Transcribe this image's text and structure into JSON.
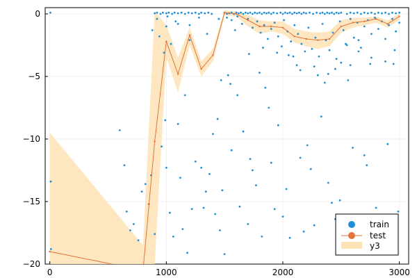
{
  "chart_data": {
    "type": "scatter",
    "xlim": [
      -40,
      3080
    ],
    "ylim": [
      -20,
      0.5
    ],
    "x_ticks": [
      0,
      1000,
      2000,
      3000
    ],
    "y_ticks": [
      0,
      -5,
      -10,
      -15,
      -20
    ],
    "x_tick_labels": [
      "0",
      "1000",
      "2000",
      "3000"
    ],
    "y_tick_labels": [
      "0",
      "−5",
      "−10",
      "−15",
      "−20"
    ],
    "grid": true,
    "legend_position": "bottom-right",
    "colors": {
      "train": "#1f8fd6",
      "test": "#e3733a",
      "band": "#fde2b5"
    },
    "series": [
      {
        "name": "train",
        "kind": "scatter",
        "points": [
          [
            5,
            0.1
          ],
          [
            8,
            -13.4
          ],
          [
            10,
            -18.8
          ],
          [
            600,
            -9.3
          ],
          [
            640,
            -12.1
          ],
          [
            660,
            -15.8
          ],
          [
            690,
            -17.3
          ],
          [
            720,
            -16.8
          ],
          [
            760,
            -18.1
          ],
          [
            790,
            -14.2
          ],
          [
            820,
            -13.6
          ],
          [
            850,
            -15.2
          ],
          [
            870,
            -12.9
          ],
          [
            880,
            -1.3
          ],
          [
            900,
            -17.6
          ],
          [
            920,
            -0.4
          ],
          [
            940,
            -1.8
          ],
          [
            960,
            -10.6
          ],
          [
            980,
            -3.1
          ],
          [
            990,
            -8.5
          ],
          [
            1000,
            -12.3
          ],
          [
            1010,
            -0.2
          ],
          [
            1030,
            -15.9
          ],
          [
            1040,
            -2.4
          ],
          [
            1060,
            -17.8
          ],
          [
            1080,
            -0.6
          ],
          [
            1100,
            -8.8
          ],
          [
            1120,
            -13.1
          ],
          [
            1140,
            -17.2
          ],
          [
            1160,
            -6.5
          ],
          [
            1180,
            -19.1
          ],
          [
            1200,
            -2.1
          ],
          [
            1220,
            -15.6
          ],
          [
            1250,
            -11.8
          ],
          [
            1280,
            -0.3
          ],
          [
            1300,
            -12.3
          ],
          [
            1320,
            -15.5
          ],
          [
            1340,
            -14.2
          ],
          [
            1370,
            -12.8
          ],
          [
            1400,
            -9.6
          ],
          [
            1420,
            -16.0
          ],
          [
            1440,
            -8.4
          ],
          [
            1460,
            -17.3
          ],
          [
            1480,
            -14.1
          ],
          [
            1500,
            -19.2
          ],
          [
            1530,
            -4.9
          ],
          [
            1560,
            -10.9
          ],
          [
            1590,
            -1.3
          ],
          [
            1610,
            -6.5
          ],
          [
            1630,
            -15.4
          ],
          [
            1660,
            -9.4
          ],
          [
            1700,
            -16.8
          ],
          [
            1720,
            -11.6
          ],
          [
            1740,
            -12.5
          ],
          [
            1770,
            -13.7
          ],
          [
            1800,
            -4.7
          ],
          [
            1820,
            -17.8
          ],
          [
            1850,
            -5.9
          ],
          [
            1880,
            -7.5
          ],
          [
            1900,
            -11.9
          ],
          [
            1930,
            -15.6
          ],
          [
            1960,
            -8.9
          ],
          [
            2000,
            -16.2
          ],
          [
            2030,
            -14.0
          ],
          [
            2060,
            -17.9
          ],
          [
            2090,
            -3.4
          ],
          [
            2120,
            -4.1
          ],
          [
            2150,
            -11.5
          ],
          [
            2180,
            -17.4
          ],
          [
            2210,
            -10.5
          ],
          [
            2240,
            -12.4
          ],
          [
            2270,
            -16.9
          ],
          [
            2300,
            -4.9
          ],
          [
            2330,
            -8.2
          ],
          [
            2360,
            -5.5
          ],
          [
            2390,
            -13.5
          ],
          [
            2420,
            -15.1
          ],
          [
            2450,
            -16.4
          ],
          [
            2470,
            -17.1
          ],
          [
            2490,
            -14.9
          ],
          [
            2510,
            -17.6
          ],
          [
            2540,
            -2.4
          ],
          [
            2560,
            -5.3
          ],
          [
            2600,
            -10.7
          ],
          [
            2620,
            -18.2
          ],
          [
            2650,
            -2.1
          ],
          [
            2700,
            -11.3
          ],
          [
            2720,
            -12.1
          ],
          [
            2750,
            -4.0
          ],
          [
            2800,
            -15.5
          ],
          [
            2850,
            -18.3
          ],
          [
            2900,
            -10.4
          ],
          [
            2950,
            -4.0
          ],
          [
            2990,
            -15.8
          ],
          [
            900,
            0.05
          ],
          [
            920,
            0.1
          ],
          [
            950,
            0.0
          ],
          [
            970,
            0.1
          ],
          [
            1000,
            0.05
          ],
          [
            1020,
            0.1
          ],
          [
            1050,
            0.0
          ],
          [
            1070,
            0.1
          ],
          [
            1100,
            0.05
          ],
          [
            1130,
            0.1
          ],
          [
            1160,
            0.0
          ],
          [
            1190,
            0.1
          ],
          [
            1220,
            0.05
          ],
          [
            1250,
            0.1
          ],
          [
            1280,
            0.0
          ],
          [
            1300,
            0.1
          ],
          [
            1330,
            0.05
          ],
          [
            1360,
            0.1
          ],
          [
            1390,
            0.0
          ],
          [
            1500,
            0.1
          ],
          [
            1520,
            0.0
          ],
          [
            1540,
            0.05
          ],
          [
            1560,
            0.1
          ],
          [
            1580,
            0.0
          ],
          [
            1600,
            0.1
          ],
          [
            1620,
            0.05
          ],
          [
            1640,
            0.1
          ],
          [
            1660,
            0.0
          ],
          [
            1680,
            0.1
          ],
          [
            1700,
            0.05
          ],
          [
            1720,
            0.1
          ],
          [
            1740,
            0.0
          ],
          [
            1760,
            0.1
          ],
          [
            1780,
            0.05
          ],
          [
            1800,
            0.1
          ],
          [
            1820,
            0.0
          ],
          [
            1840,
            0.1
          ],
          [
            1860,
            0.05
          ],
          [
            1880,
            0.1
          ],
          [
            1900,
            0.0
          ],
          [
            1920,
            0.1
          ],
          [
            1950,
            0.05
          ],
          [
            1980,
            0.1
          ],
          [
            2000,
            0.0
          ],
          [
            2020,
            0.1
          ],
          [
            2040,
            0.05
          ],
          [
            2060,
            0.1
          ],
          [
            2080,
            0.0
          ],
          [
            2100,
            0.1
          ],
          [
            2120,
            0.05
          ],
          [
            2140,
            0.1
          ],
          [
            2160,
            0.0
          ],
          [
            2180,
            0.1
          ],
          [
            2200,
            0.05
          ],
          [
            2230,
            0.1
          ],
          [
            2260,
            0.0
          ],
          [
            2290,
            0.1
          ],
          [
            2320,
            0.05
          ],
          [
            2340,
            0.1
          ],
          [
            2360,
            0.0
          ],
          [
            2380,
            0.1
          ],
          [
            2400,
            0.05
          ],
          [
            2420,
            0.1
          ],
          [
            2440,
            0.0
          ],
          [
            2460,
            0.1
          ],
          [
            2480,
            0.05
          ],
          [
            2500,
            0.1
          ],
          [
            2550,
            0.0
          ],
          [
            2580,
            0.1
          ],
          [
            2610,
            0.05
          ],
          [
            2640,
            0.1
          ],
          [
            2670,
            0.0
          ],
          [
            2700,
            0.1
          ],
          [
            2730,
            0.05
          ],
          [
            2760,
            0.1
          ],
          [
            2790,
            0.0
          ],
          [
            2820,
            0.1
          ],
          [
            2850,
            0.05
          ],
          [
            2880,
            0.1
          ],
          [
            2910,
            0.0
          ],
          [
            2940,
            0.1
          ],
          [
            2970,
            0.05
          ],
          [
            3000,
            0.1
          ],
          [
            1520,
            -0.3
          ],
          [
            1560,
            -0.5
          ],
          [
            1610,
            -0.2
          ],
          [
            1650,
            -0.8
          ],
          [
            1700,
            -0.4
          ],
          [
            1740,
            -1.1
          ],
          [
            1780,
            -0.6
          ],
          [
            1810,
            -1.5
          ],
          [
            1840,
            -0.9
          ],
          [
            1870,
            -2.0
          ],
          [
            1900,
            -1.2
          ],
          [
            1930,
            -0.7
          ],
          [
            1960,
            -1.8
          ],
          [
            1990,
            -2.6
          ],
          [
            2010,
            -0.5
          ],
          [
            2040,
            -1.4
          ],
          [
            2070,
            -2.2
          ],
          [
            2100,
            -0.9
          ],
          [
            2130,
            -1.6
          ],
          [
            2160,
            -2.4
          ],
          [
            2190,
            -3.0
          ],
          [
            2220,
            -1.1
          ],
          [
            2250,
            -2.8
          ],
          [
            2280,
            -1.9
          ],
          [
            2310,
            -3.4
          ],
          [
            2340,
            -0.8
          ],
          [
            2370,
            -2.1
          ],
          [
            2400,
            -2.9
          ],
          [
            2430,
            -1.5
          ],
          [
            2460,
            -3.6
          ],
          [
            2490,
            -0.6
          ],
          [
            2520,
            -1.3
          ],
          [
            2550,
            -2.5
          ],
          [
            2580,
            -0.4
          ],
          [
            2610,
            -1.9
          ],
          [
            2640,
            -0.7
          ],
          [
            2670,
            -2.7
          ],
          [
            2700,
            -1.0
          ],
          [
            2730,
            -0.5
          ],
          [
            2760,
            -1.6
          ],
          [
            2790,
            -0.3
          ],
          [
            2820,
            -1.2
          ],
          [
            2850,
            -0.6
          ],
          [
            2880,
            -2.0
          ],
          [
            2910,
            -0.9
          ],
          [
            2940,
            -0.4
          ],
          [
            2970,
            -1.4
          ],
          [
            3000,
            -0.7
          ],
          [
            1710,
            -3.2
          ],
          [
            1830,
            -2.7
          ],
          [
            1950,
            -3.1
          ],
          [
            2050,
            -3.3
          ],
          [
            2150,
            -4.5
          ],
          [
            2270,
            -4.2
          ],
          [
            2390,
            -4.8
          ],
          [
            2450,
            -4.4
          ],
          [
            2500,
            -3.9
          ],
          [
            2580,
            -4.1
          ],
          [
            2650,
            -3.0
          ],
          [
            2760,
            -3.5
          ],
          [
            2880,
            -3.8
          ],
          [
            2960,
            -2.9
          ],
          [
            1000,
            -1.0
          ],
          [
            1100,
            -0.8
          ],
          [
            1200,
            -0.9
          ],
          [
            1350,
            -1.6
          ],
          [
            1450,
            -0.4
          ],
          [
            1470,
            -5.3
          ],
          [
            1550,
            -5.6
          ]
        ]
      },
      {
        "name": "test",
        "kind": "line",
        "x": [
          0,
          800,
          900,
          1000,
          1100,
          1200,
          1300,
          1400,
          1500,
          1600,
          1700,
          1800,
          1900,
          2000,
          2100,
          2200,
          2300,
          2400,
          2500,
          2600,
          2700,
          2800,
          2900,
          3000
        ],
        "y": [
          -19,
          -20.5,
          -10.2,
          -2.2,
          -4.8,
          -1.7,
          -4.4,
          -3.3,
          0.1,
          0.0,
          -0.5,
          -1.0,
          -1.0,
          -1.1,
          -1.8,
          -2.0,
          -2.1,
          -2.0,
          -1.0,
          -0.7,
          -0.6,
          -0.4,
          -0.8,
          -0.2
        ]
      },
      {
        "name": "y3",
        "kind": "band",
        "x": [
          0,
          800,
          900,
          1000,
          1100,
          1200,
          1300,
          1400,
          1500,
          1600,
          1700,
          1800,
          1900,
          2000,
          2100,
          2200,
          2300,
          2400,
          2500,
          2600,
          2700,
          2800,
          2900,
          3000
        ],
        "upper": [
          -9.5,
          -18.5,
          0.2,
          -0.9,
          -3.5,
          -1.1,
          -3.8,
          -2.8,
          0.3,
          0.2,
          -0.1,
          -0.5,
          -0.6,
          -0.6,
          -1.2,
          -1.4,
          -1.5,
          -1.4,
          -0.5,
          -0.3,
          -0.3,
          -0.2,
          -0.5,
          0.0
        ],
        "lower": [
          -21,
          -21,
          -20,
          -3.5,
          -6.3,
          -2.5,
          -5.0,
          -3.8,
          -0.1,
          -0.2,
          -1.0,
          -1.6,
          -1.4,
          -1.6,
          -2.3,
          -2.6,
          -2.8,
          -2.6,
          -1.5,
          -1.1,
          -0.9,
          -0.7,
          -1.1,
          -0.5
        ]
      }
    ]
  }
}
